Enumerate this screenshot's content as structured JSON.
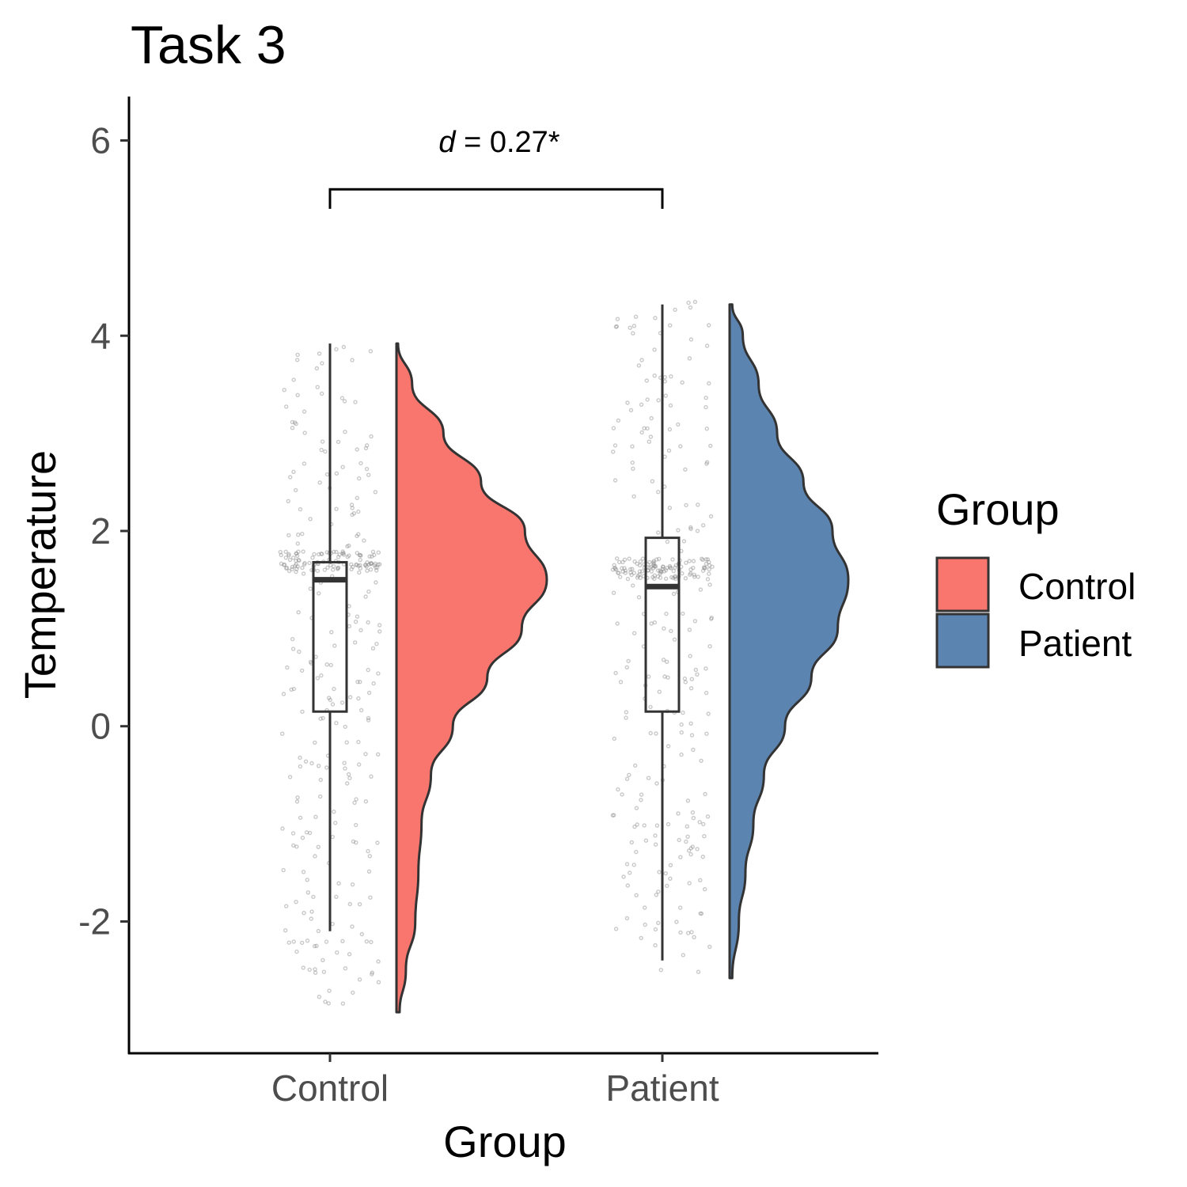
{
  "chart_data": {
    "type": "raincloud",
    "title": "Task 3",
    "xlabel": "Group",
    "ylabel": "Temperature",
    "categories": [
      "Control",
      "Patient"
    ],
    "ylim": [
      -3.35,
      6.45
    ],
    "yticks": [
      -2,
      0,
      2,
      4,
      6
    ],
    "ytick_labels": [
      "-2",
      "0",
      "2",
      "4",
      "6"
    ],
    "grid": false,
    "legend": {
      "title": "Group",
      "placement": "right",
      "entries": [
        {
          "label": "Control",
          "color": "#F8766D"
        },
        {
          "label": "Patient",
          "color": "#5B84B1"
        }
      ]
    },
    "series": [
      {
        "name": "Control",
        "color": "#F8766D",
        "box": {
          "whisker_low": -2.1,
          "q1": 0.15,
          "median": 1.5,
          "q3": 1.68,
          "whisker_high": 3.92
        },
        "density": {
          "y": [
            -2.93,
            -2.5,
            -2.0,
            -1.5,
            -1.0,
            -0.5,
            0.0,
            0.5,
            1.0,
            1.5,
            2.0,
            2.5,
            3.0,
            3.5,
            3.92
          ],
          "d": [
            0.02,
            0.06,
            0.12,
            0.14,
            0.16,
            0.22,
            0.36,
            0.58,
            0.8,
            0.96,
            0.82,
            0.54,
            0.3,
            0.1,
            0.01
          ]
        },
        "points": {
          "y_min": -2.85,
          "y_max": 3.92
        }
      },
      {
        "name": "Patient",
        "color": "#5B84B1",
        "box": {
          "whisker_low": -2.4,
          "q1": 0.15,
          "median": 1.43,
          "q3": 1.93,
          "whisker_high": 4.32
        },
        "density": {
          "y": [
            -2.58,
            -2.0,
            -1.5,
            -1.0,
            -0.5,
            0.0,
            0.5,
            1.0,
            1.5,
            2.0,
            2.5,
            3.0,
            3.5,
            4.0,
            4.32
          ],
          "d": [
            0.02,
            0.07,
            0.12,
            0.18,
            0.26,
            0.42,
            0.62,
            0.82,
            0.9,
            0.78,
            0.56,
            0.36,
            0.22,
            0.1,
            0.02
          ]
        },
        "points": {
          "y_min": -2.55,
          "y_max": 4.35
        }
      }
    ],
    "annotation": {
      "d_symbol": "d",
      "text": " = 0.27*",
      "bracket_y": 5.5,
      "bracket_drop": 5.3,
      "between": [
        "Control",
        "Patient"
      ]
    }
  }
}
